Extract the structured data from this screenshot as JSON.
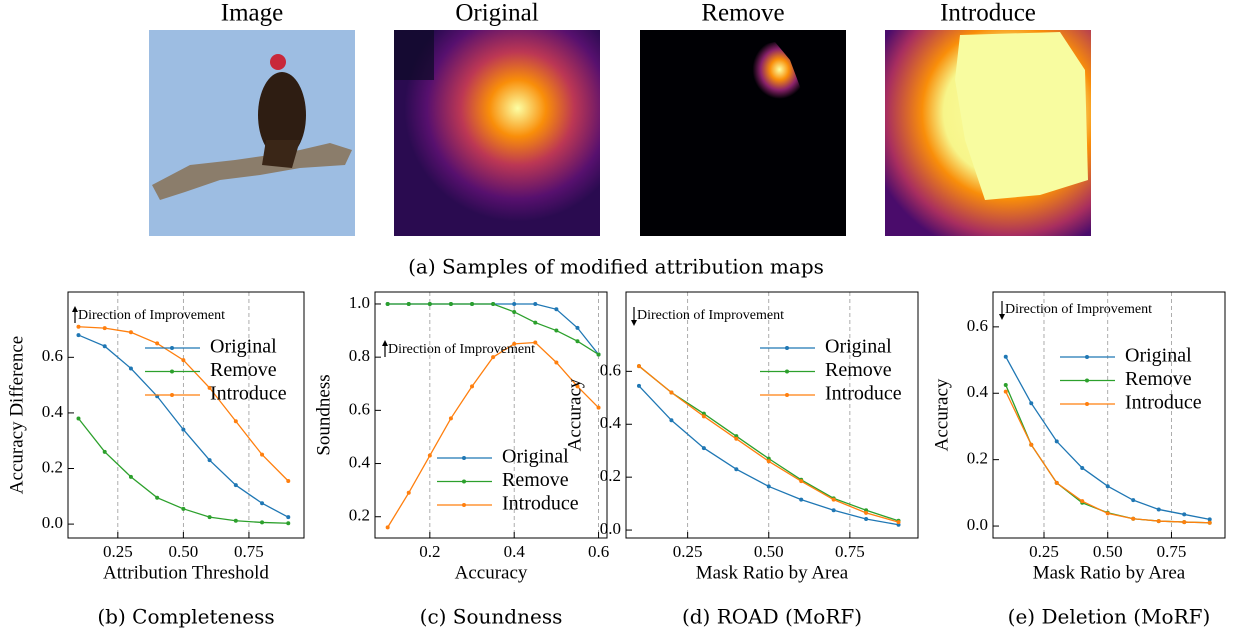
{
  "figure": {
    "panels": [
      "Image",
      "Original",
      "Remove",
      "Introduce"
    ],
    "caption": "(a) Samples of modified attribution maps"
  },
  "chart_data": [
    {
      "type": "line",
      "caption": "(b) Completeness",
      "x_label": "Attribution Threshold",
      "y_label": "Accuracy Difference",
      "annotation": "Direction of Improvement",
      "annotation_arrow": "up",
      "legend_loc": "upper right",
      "grid": "x",
      "x": [
        0.1,
        0.2,
        0.3,
        0.4,
        0.5,
        0.6,
        0.7,
        0.8,
        0.9
      ],
      "xlim": [
        0.06,
        0.96
      ],
      "xticks": [
        0.25,
        {
          "value": 0.5,
          "label": "0.50"
        },
        0.75
      ],
      "ylim": [
        -0.05,
        0.835
      ],
      "yticks": [
        {
          "value": 0,
          "label": "0.0"
        },
        0.2,
        0.4,
        0.6
      ],
      "series": [
        {
          "name": "Original",
          "color": "#1f77b4",
          "values": [
            0.68,
            0.64,
            0.56,
            0.46,
            0.34,
            0.23,
            0.14,
            0.075,
            0.025
          ]
        },
        {
          "name": "Remove",
          "color": "#2ca02c",
          "values": [
            0.38,
            0.26,
            0.17,
            0.095,
            0.055,
            0.025,
            0.012,
            0.006,
            0.003
          ]
        },
        {
          "name": "Introduce",
          "color": "#ff7f0e",
          "values": [
            0.71,
            0.705,
            0.69,
            0.65,
            0.59,
            0.49,
            0.37,
            0.25,
            0.155
          ]
        }
      ]
    },
    {
      "type": "line",
      "caption": "(c) Soundness",
      "x_label": "Accuracy",
      "y_label": "Soundness",
      "annotation": "Direction of Improvement",
      "annotation_arrow": "up",
      "legend_loc": "lower right",
      "grid": "x",
      "x": [
        0.1,
        0.15,
        0.2,
        0.25,
        0.3,
        0.35,
        0.4,
        0.45,
        0.5,
        0.55,
        0.6
      ],
      "xlim": [
        0.07,
        0.62
      ],
      "xticks": [
        0.2,
        0.4,
        0.6
      ],
      "ylim": [
        0.12,
        1.045
      ],
      "yticks": [
        0.2,
        0.4,
        0.6,
        0.8,
        {
          "value": 1,
          "label": "1.0"
        }
      ],
      "series": [
        {
          "name": "Original",
          "color": "#1f77b4",
          "values": [
            1.0,
            1.0,
            1.0,
            1.0,
            1.0,
            1.0,
            1.0,
            1.0,
            0.98,
            0.91,
            0.81
          ]
        },
        {
          "name": "Remove",
          "color": "#2ca02c",
          "values": [
            1.0,
            1.0,
            1.0,
            1.0,
            1.0,
            1.0,
            0.97,
            0.93,
            0.9,
            0.86,
            0.81
          ]
        },
        {
          "name": "Introduce",
          "color": "#ff7f0e",
          "values": [
            0.16,
            0.29,
            0.43,
            0.57,
            0.69,
            0.8,
            0.85,
            0.855,
            0.78,
            0.69,
            0.61
          ]
        }
      ]
    },
    {
      "type": "line",
      "caption": "(d) ROAD (MoRF)",
      "x_label": "Mask Ratio by Area",
      "y_label": "Accuracy",
      "annotation": "Direction of Improvement",
      "annotation_arrow": "down",
      "legend_loc": "upper right",
      "grid": "x",
      "x": [
        0.1,
        0.2,
        0.3,
        0.4,
        0.5,
        0.6,
        0.7,
        0.8,
        0.9
      ],
      "xlim": [
        0.06,
        0.96
      ],
      "xticks": [
        0.25,
        {
          "value": 0.5,
          "label": "0.50"
        },
        0.75
      ],
      "ylim": [
        -0.03,
        0.9
      ],
      "yticks": [
        {
          "value": 0,
          "label": "0.0"
        },
        0.2,
        0.4,
        0.6
      ],
      "series": [
        {
          "name": "Original",
          "color": "#1f77b4",
          "values": [
            0.545,
            0.415,
            0.31,
            0.23,
            0.165,
            0.115,
            0.075,
            0.042,
            0.02
          ]
        },
        {
          "name": "Remove",
          "color": "#2ca02c",
          "values": [
            0.62,
            0.52,
            0.44,
            0.355,
            0.27,
            0.19,
            0.12,
            0.075,
            0.035
          ]
        },
        {
          "name": "Introduce",
          "color": "#ff7f0e",
          "values": [
            0.62,
            0.52,
            0.43,
            0.345,
            0.26,
            0.185,
            0.115,
            0.065,
            0.03
          ]
        }
      ]
    },
    {
      "type": "line",
      "caption": "(e) Deletion (MoRF)",
      "x_label": "Mask Ratio by Area",
      "y_label": "Accuracy",
      "annotation": "Direction of Improvement",
      "annotation_arrow": "down",
      "legend_loc": "center right",
      "grid": "x",
      "x": [
        0.1,
        0.2,
        0.3,
        0.4,
        0.5,
        0.6,
        0.7,
        0.8,
        0.9
      ],
      "xlim": [
        0.05,
        0.96
      ],
      "xticks": [
        0.25,
        {
          "value": 0.5,
          "label": "0.50"
        },
        0.75
      ],
      "ylim": [
        -0.036,
        0.705
      ],
      "yticks": [
        {
          "value": 0,
          "label": "0.0"
        },
        0.2,
        0.4,
        0.6
      ],
      "series": [
        {
          "name": "Original",
          "color": "#1f77b4",
          "values": [
            0.51,
            0.37,
            0.255,
            0.175,
            0.12,
            0.078,
            0.05,
            0.035,
            0.02
          ]
        },
        {
          "name": "Remove",
          "color": "#2ca02c",
          "values": [
            0.425,
            0.245,
            0.13,
            0.07,
            0.04,
            0.022,
            0.015,
            0.012,
            0.01
          ]
        },
        {
          "name": "Introduce",
          "color": "#ff7f0e",
          "values": [
            0.405,
            0.245,
            0.13,
            0.075,
            0.038,
            0.022,
            0.015,
            0.012,
            0.01
          ]
        }
      ]
    }
  ]
}
